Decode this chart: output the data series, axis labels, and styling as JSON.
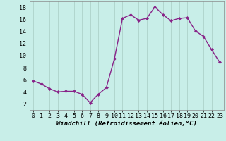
{
  "x": [
    0,
    1,
    2,
    3,
    4,
    5,
    6,
    7,
    8,
    9,
    10,
    11,
    12,
    13,
    14,
    15,
    16,
    17,
    18,
    19,
    20,
    21,
    22,
    23
  ],
  "y": [
    5.8,
    5.3,
    4.5,
    4.0,
    4.1,
    4.1,
    3.6,
    2.2,
    3.6,
    4.7,
    9.5,
    16.2,
    16.8,
    15.9,
    16.2,
    18.1,
    16.8,
    15.8,
    16.2,
    16.3,
    14.1,
    13.2,
    11.0,
    8.9
  ],
  "line_color": "#882288",
  "marker": "D",
  "marker_size": 2.0,
  "bg_color": "#c8eee8",
  "grid_color": "#a8ccc4",
  "xlabel": "Windchill (Refroidissement éolien,°C)",
  "xlim": [
    -0.5,
    23.5
  ],
  "ylim": [
    1.0,
    19.0
  ],
  "yticks": [
    2,
    4,
    6,
    8,
    10,
    12,
    14,
    16,
    18
  ],
  "xticks": [
    0,
    1,
    2,
    3,
    4,
    5,
    6,
    7,
    8,
    9,
    10,
    11,
    12,
    13,
    14,
    15,
    16,
    17,
    18,
    19,
    20,
    21,
    22,
    23
  ],
  "xlabel_fontsize": 6.5,
  "tick_fontsize": 6.0,
  "linewidth": 1.0
}
